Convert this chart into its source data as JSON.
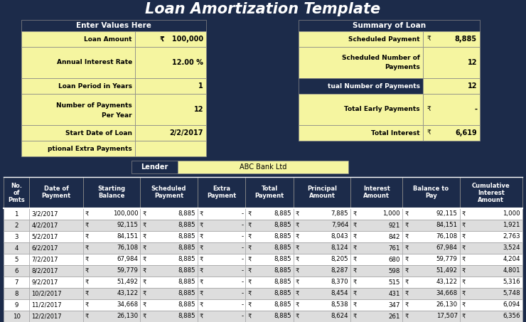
{
  "title": "Loan Amortization Template",
  "dark_navy": "#1C2B4A",
  "yellow": "#F5F5A0",
  "white": "#FFFFFF",
  "black": "#000000",
  "input_labels": [
    "Loan Amount",
    "Annual Interest Rate",
    "Loan Period in Years",
    "Number of Payments\nPer Year",
    "Start Date of Loan",
    "ptional Extra Payments"
  ],
  "input_values": [
    "₹   100,000",
    "12.00 %",
    "1",
    "12",
    "2/2/2017",
    ""
  ],
  "input_row_label_yellow": [
    true,
    true,
    true,
    true,
    true,
    true
  ],
  "input_row_val_yellow": [
    true,
    false,
    true,
    true,
    true,
    true
  ],
  "summary_labels": [
    "Scheduled Payment",
    "Scheduled Number of\nPayments",
    "tual Number of Payments",
    "Total Early Payments",
    "Total Interest"
  ],
  "summary_values_currency": [
    "₹",
    "",
    "",
    "₹",
    "₹"
  ],
  "summary_values_num": [
    "8,885",
    "12",
    "12",
    "-",
    "6,619"
  ],
  "summary_row_label_yellow": [
    true,
    true,
    false,
    true,
    true
  ],
  "lender_label": "Lender",
  "lender_value": "ABC Bank Ltd",
  "col_headers": [
    "No.\nof\nPmts",
    "Date of\nPayment",
    "Starting\nBalance",
    "Scheduled\nPayment",
    "Extra\nPayment",
    "Total\nPayment",
    "Principal\nAmount",
    "Interest\nAmount",
    "Balance to\nPay",
    "Cumulative\nInterest\nAmount"
  ],
  "table_rows": [
    [
      "1",
      "3/2/2017",
      "₹",
      "100,000",
      "₹",
      "8,885",
      "₹",
      "-",
      "₹",
      "8,885",
      "₹",
      "7,885",
      "₹",
      "1,000",
      "₹",
      "92,115",
      "₹",
      "1,000"
    ],
    [
      "2",
      "4/2/2017",
      "₹",
      "92,115",
      "₹",
      "8,885",
      "₹",
      "-",
      "₹",
      "8,885",
      "₹",
      "7,964",
      "₹",
      "921",
      "₹",
      "84,151",
      "₹",
      "1,921"
    ],
    [
      "3",
      "5/2/2017",
      "₹",
      "84,151",
      "₹",
      "8,885",
      "₹",
      "-",
      "₹",
      "8,885",
      "₹",
      "8,043",
      "₹",
      "842",
      "₹",
      "76,108",
      "₹",
      "2,763"
    ],
    [
      "4",
      "6/2/2017",
      "₹",
      "76,108",
      "₹",
      "8,885",
      "₹",
      "-",
      "₹",
      "8,885",
      "₹",
      "8,124",
      "₹",
      "761",
      "₹",
      "67,984",
      "₹",
      "3,524"
    ],
    [
      "5",
      "7/2/2017",
      "₹",
      "67,984",
      "₹",
      "8,885",
      "₹",
      "-",
      "₹",
      "8,885",
      "₹",
      "8,205",
      "₹",
      "680",
      "₹",
      "59,779",
      "₹",
      "4,204"
    ],
    [
      "6",
      "8/2/2017",
      "₹",
      "59,779",
      "₹",
      "8,885",
      "₹",
      "-",
      "₹",
      "8,885",
      "₹",
      "8,287",
      "₹",
      "598",
      "₹",
      "51,492",
      "₹",
      "4,801"
    ],
    [
      "7",
      "9/2/2017",
      "₹",
      "51,492",
      "₹",
      "8,885",
      "₹",
      "-",
      "₹",
      "8,885",
      "₹",
      "8,370",
      "₹",
      "515",
      "₹",
      "43,122",
      "₹",
      "5,316"
    ],
    [
      "8",
      "10/2/2017",
      "₹",
      "43,122",
      "₹",
      "8,885",
      "₹",
      "-",
      "₹",
      "8,885",
      "₹",
      "8,454",
      "₹",
      "431",
      "₹",
      "34,668",
      "₹",
      "5,748"
    ],
    [
      "9",
      "11/2/2017",
      "₹",
      "34,668",
      "₹",
      "8,885",
      "₹",
      "-",
      "₹",
      "8,885",
      "₹",
      "8,538",
      "₹",
      "347",
      "₹",
      "26,130",
      "₹",
      "6,094"
    ],
    [
      "10",
      "12/2/2017",
      "₹",
      "26,130",
      "₹",
      "8,885",
      "₹",
      "-",
      "₹",
      "8,885",
      "₹",
      "8,624",
      "₹",
      "261",
      "₹",
      "17,507",
      "₹",
      "6,356"
    ]
  ]
}
